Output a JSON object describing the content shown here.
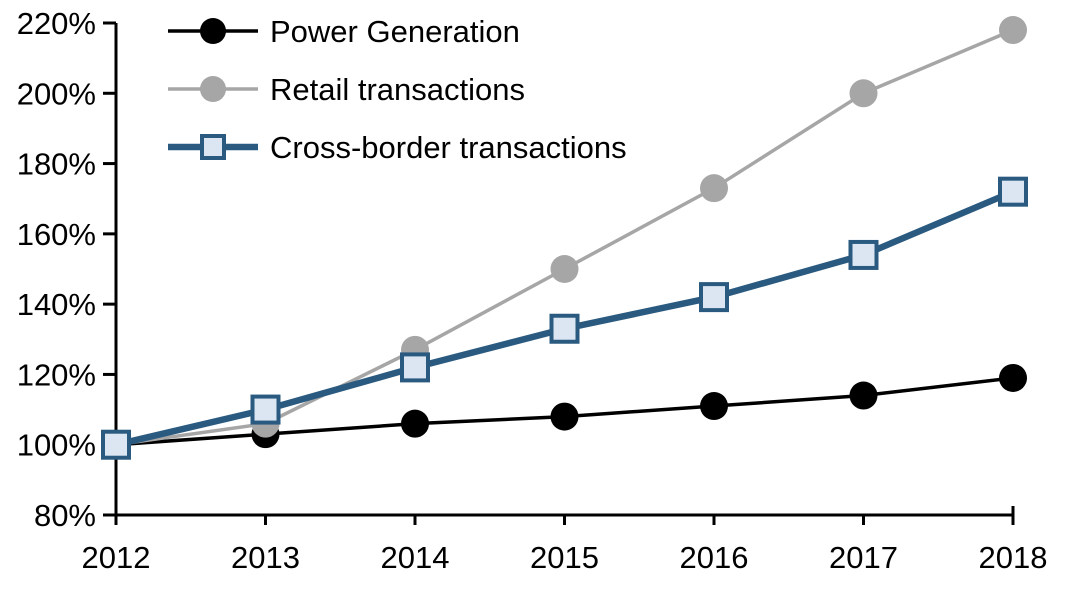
{
  "chart_data": {
    "type": "line",
    "title": "",
    "xlabel": "",
    "ylabel": "",
    "x": [
      2012,
      2013,
      2014,
      2015,
      2016,
      2017,
      2018
    ],
    "x_labels": [
      "2012",
      "2013",
      "2014",
      "2015",
      "2016",
      "2017",
      "2018"
    ],
    "series": [
      {
        "name": "Power Generation",
        "values": [
          100,
          103,
          106,
          108,
          111,
          114,
          119
        ],
        "color": "#000000",
        "marker": "circle",
        "marker_fill": "#000000",
        "line_width": 3.5
      },
      {
        "name": "Retail transactions",
        "values": [
          100,
          106,
          127,
          150,
          173,
          200,
          218
        ],
        "color": "#A6A6A6",
        "marker": "circle",
        "marker_fill": "#A6A6A6",
        "line_width": 3.5
      },
      {
        "name": "Cross-border transactions",
        "values": [
          100,
          110,
          122,
          133,
          142,
          154,
          172
        ],
        "color": "#2A5A80",
        "marker": "square",
        "marker_fill": "#DCE6F2",
        "line_width": 6.5
      }
    ],
    "ylim": [
      80,
      220
    ],
    "ytick_step": 20,
    "ytick_suffix": "%",
    "legend_position": "top-left",
    "grid": false,
    "background": "#FFFFFF",
    "axis_color": "#000000"
  }
}
